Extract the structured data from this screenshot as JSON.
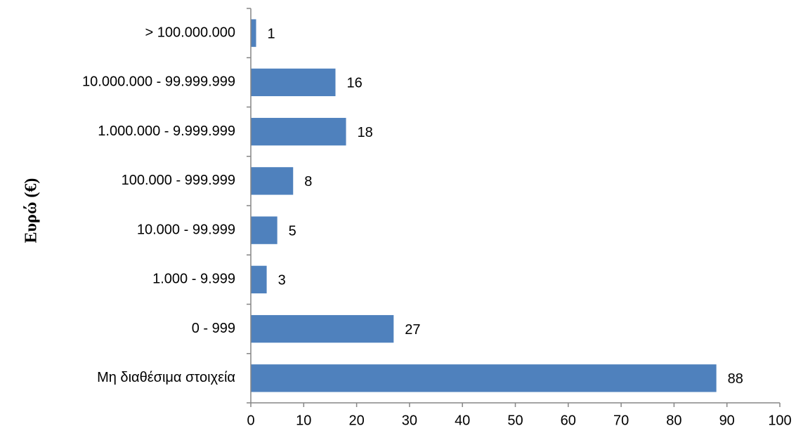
{
  "chart_data": {
    "type": "bar",
    "orientation": "horizontal",
    "categories": [
      "> 100.000.000",
      "10.000.000 - 99.999.999",
      "1.000.000 - 9.999.999",
      "100.000 - 999.999",
      "10.000 - 99.999",
      "1.000 - 9.999",
      "0 - 999",
      "Μη διαθέσιμα στοιχεία"
    ],
    "values": [
      1,
      16,
      18,
      8,
      5,
      3,
      27,
      88
    ],
    "title": "",
    "xlabel": "",
    "ylabel": "Ευρώ (€)",
    "xlim": [
      0,
      100
    ],
    "xticks": [
      0,
      10,
      20,
      30,
      40,
      50,
      60,
      70,
      80,
      90,
      100
    ],
    "grid": false,
    "legend": "none",
    "bar_color": "#4F81BD"
  }
}
